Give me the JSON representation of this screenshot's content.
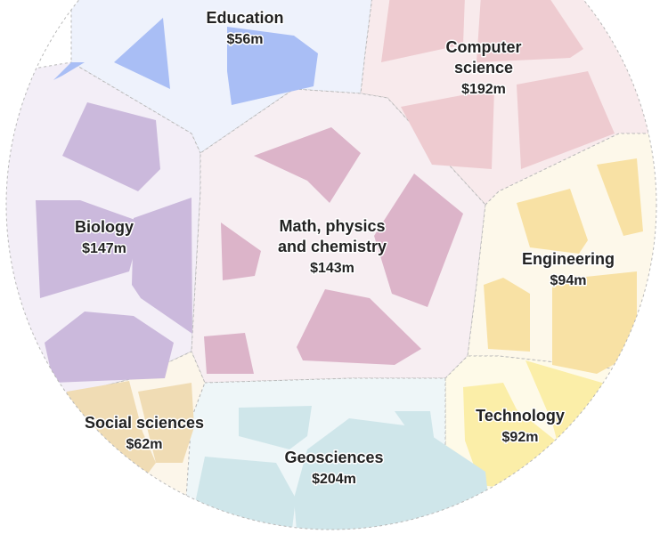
{
  "chart_data": {
    "type": "voronoi-treemap",
    "unit": "m",
    "series": [
      {
        "key": "education",
        "name_lines": [
          "Education"
        ],
        "value_label": "$56m",
        "value": 56,
        "color": "#a9bef5",
        "bg": "#eef2fc"
      },
      {
        "key": "computer_science",
        "name_lines": [
          "Computer",
          "science"
        ],
        "value_label": "$192m",
        "value": 192,
        "color": "#eecbd0",
        "bg": "#f8eaec"
      },
      {
        "key": "biology",
        "name_lines": [
          "Biology"
        ],
        "value_label": "$147m",
        "value": 147,
        "color": "#cbb9dc",
        "bg": "#f3eef7"
      },
      {
        "key": "math_physics_chemistry",
        "name_lines": [
          "Math, physics",
          "and chemistry"
        ],
        "value_label": "$143m",
        "value": 143,
        "color": "#dcb4c9",
        "bg": "#f7eef2"
      },
      {
        "key": "engineering",
        "name_lines": [
          "Engineering"
        ],
        "value_label": "$94m",
        "value": 94,
        "color": "#f8e1a4",
        "bg": "#fdf8ea"
      },
      {
        "key": "technology",
        "name_lines": [
          "Technology"
        ],
        "value_label": "$92m",
        "value": 92,
        "color": "#fbeea8",
        "bg": "#fefae8"
      },
      {
        "key": "social_sciences",
        "name_lines": [
          "Social sciences"
        ],
        "value_label": "$62m",
        "value": 62,
        "color": "#f0dcb4",
        "bg": "#fcf6ea"
      },
      {
        "key": "geosciences",
        "name_lines": [
          "Geosciences"
        ],
        "value_label": "$204m",
        "value": 204,
        "color": "#cfe6ea",
        "bg": "#eef6f8"
      }
    ]
  }
}
